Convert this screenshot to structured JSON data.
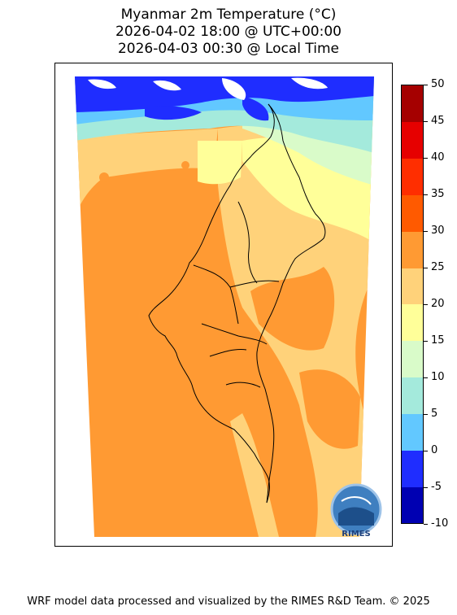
{
  "title": {
    "line1": "Myanmar 2m Temperature (°C)",
    "line2": "2026-04-02 18:00 @ UTC+00:00",
    "line3": "2026-04-03 00:30 @ Local Time"
  },
  "colorbar": {
    "levels": [
      {
        "from": -10,
        "to": -5,
        "color": "#0000b2"
      },
      {
        "from": -5,
        "to": 0,
        "color": "#1f2dff"
      },
      {
        "from": 0,
        "to": 5,
        "color": "#62c8ff"
      },
      {
        "from": 5,
        "to": 10,
        "color": "#a4eadc"
      },
      {
        "from": 10,
        "to": 15,
        "color": "#d9fbc9"
      },
      {
        "from": 15,
        "to": 20,
        "color": "#ffff99"
      },
      {
        "from": 20,
        "to": 25,
        "color": "#ffd27a"
      },
      {
        "from": 25,
        "to": 30,
        "color": "#ff9a33"
      },
      {
        "from": 30,
        "to": 35,
        "color": "#ff5a00"
      },
      {
        "from": 35,
        "to": 40,
        "color": "#ff2e00"
      },
      {
        "from": 40,
        "to": 45,
        "color": "#e60000"
      },
      {
        "from": 45,
        "to": 50,
        "color": "#a50000"
      }
    ],
    "tick_labels": [
      "50",
      "45",
      "40",
      "35",
      "30",
      "25",
      "20",
      "15",
      "10",
      "5",
      "0",
      "-5",
      "-10"
    ]
  },
  "logo": {
    "text": "RIMES"
  },
  "footer": "WRF model data processed and visualized by the RIMES R&D Team. © 2025"
}
